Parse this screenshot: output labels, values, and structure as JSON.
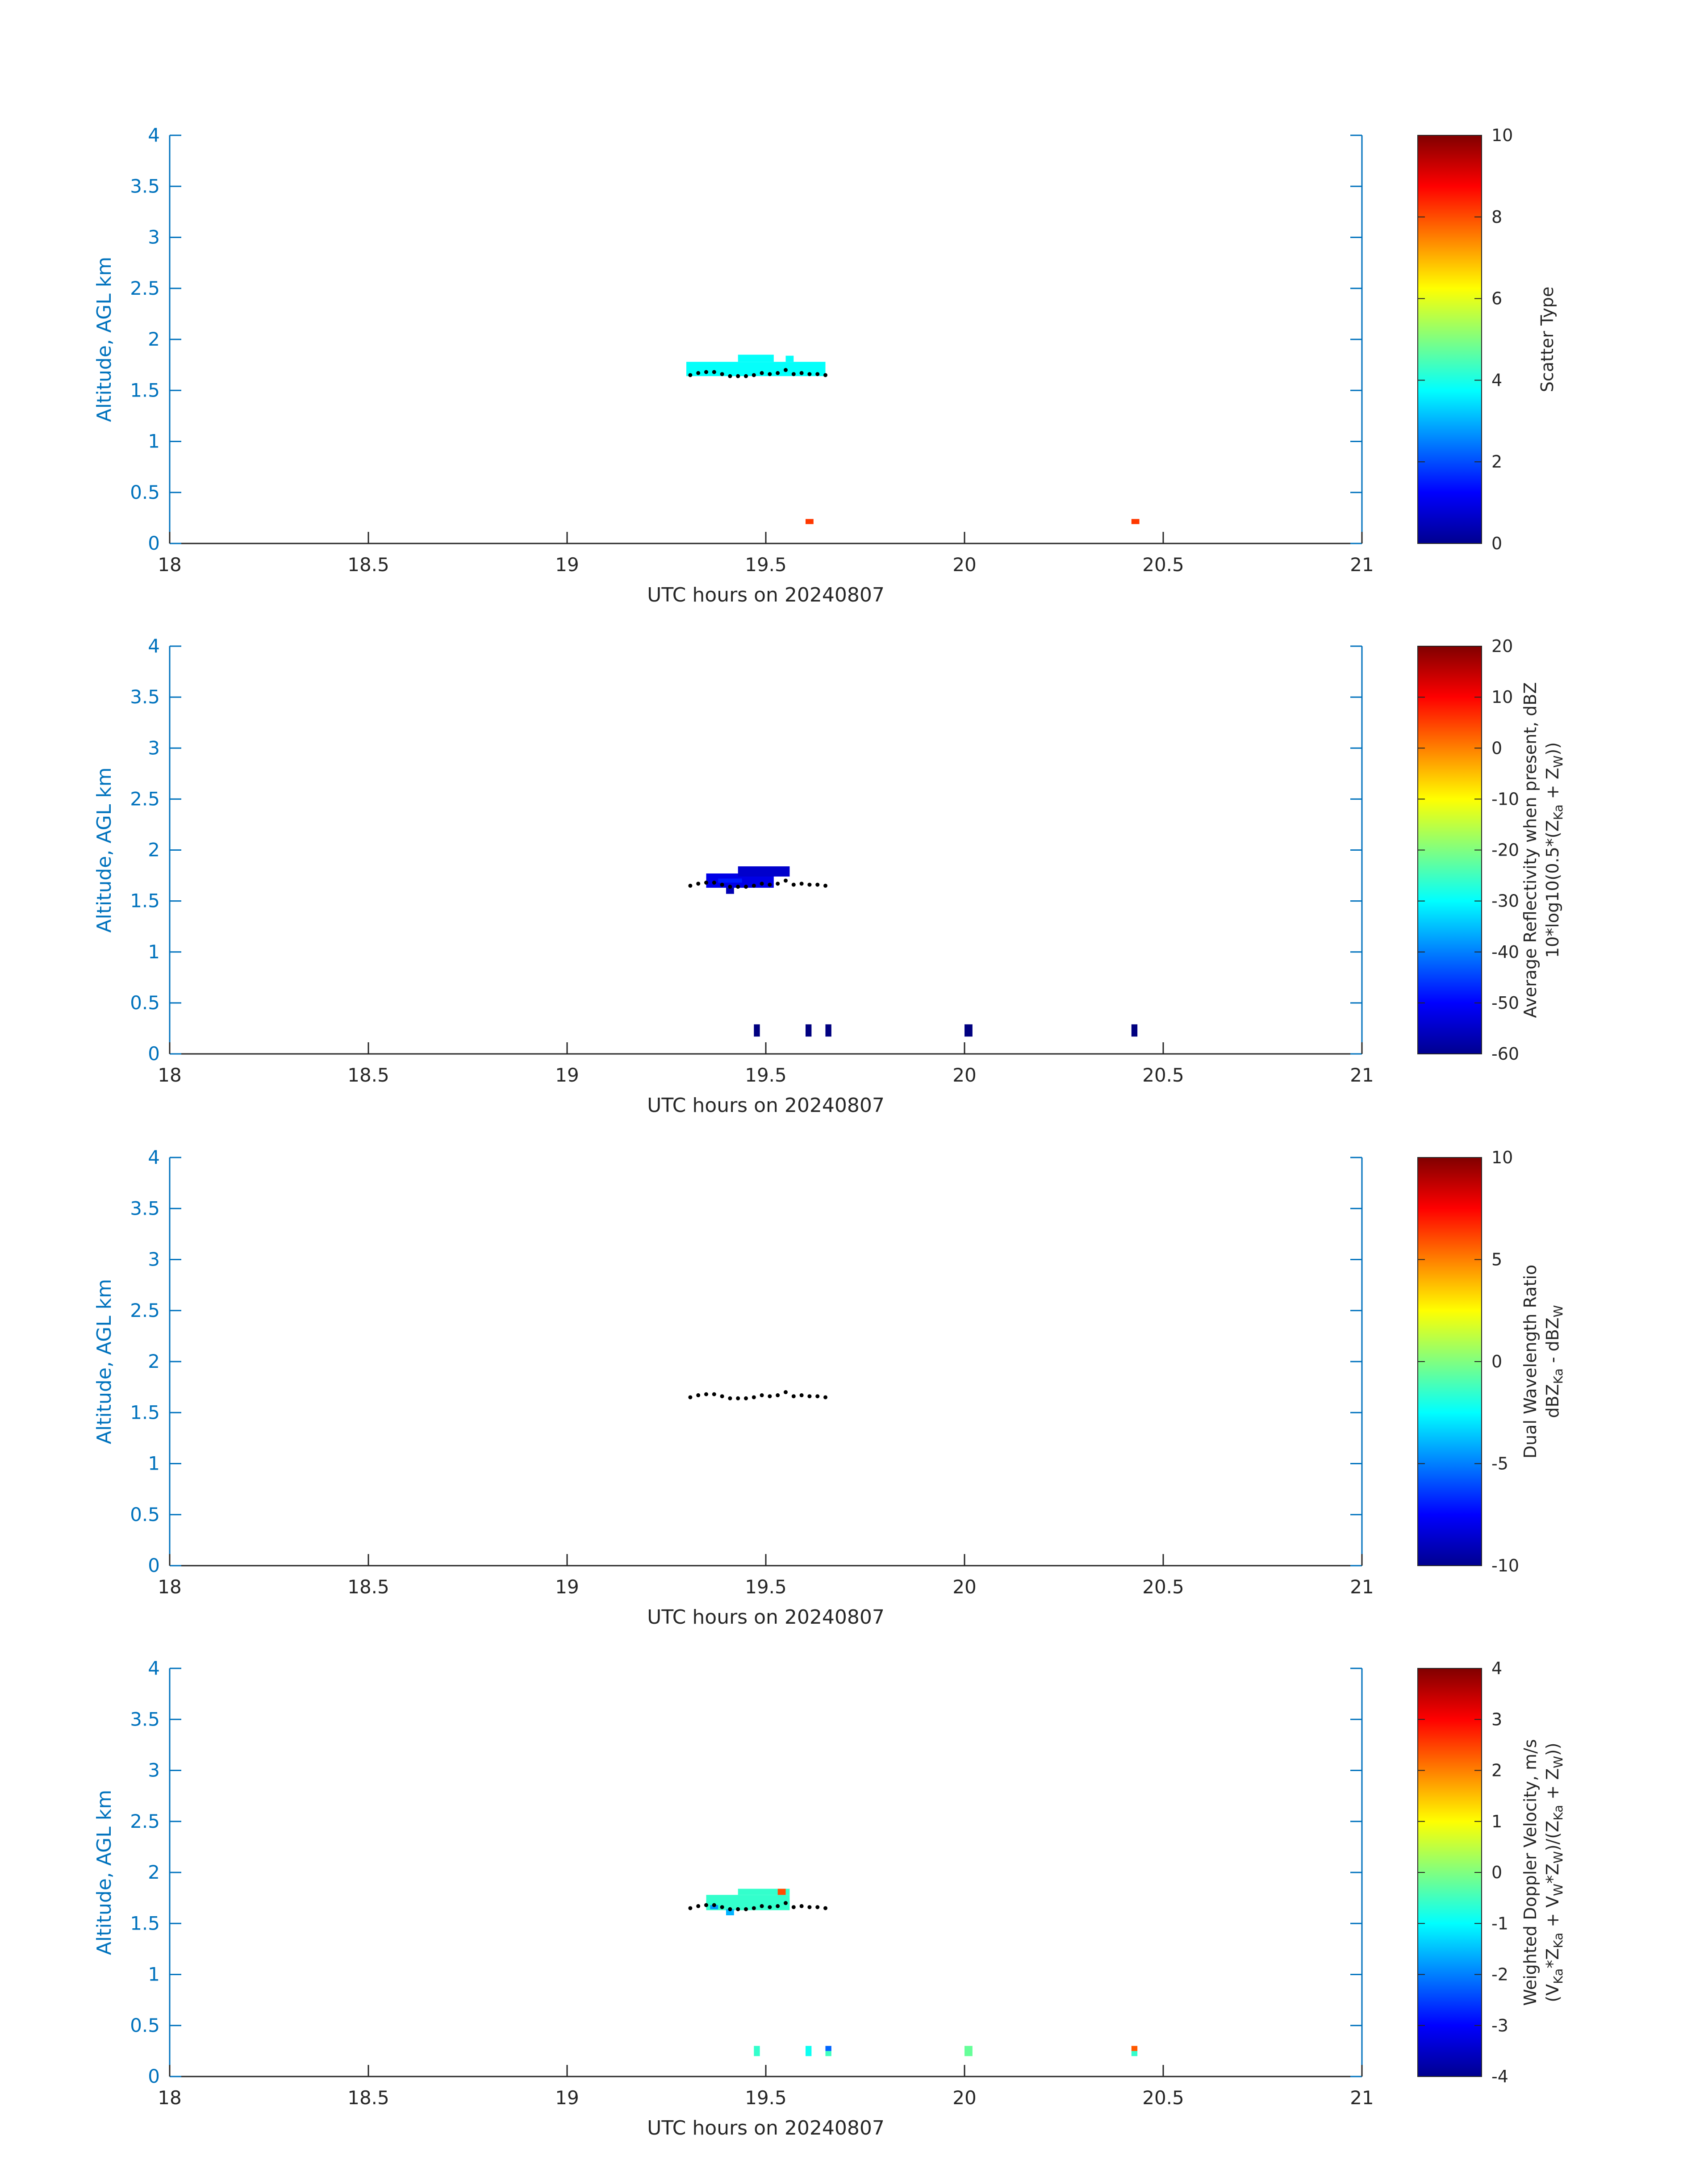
{
  "chart_data": [
    {
      "type": "heatmap",
      "xlabel": "UTC hours on 20240807",
      "ylabel": "Altitude, AGL km",
      "xlim": [
        18,
        21
      ],
      "ylim": [
        0,
        4
      ],
      "x_ticks": [
        "18",
        "18.5",
        "19",
        "19.5",
        "20",
        "20.5",
        "21"
      ],
      "y_ticks": [
        "0",
        "0.5",
        "1",
        "1.5",
        "2",
        "2.5",
        "3",
        "3.5",
        "4"
      ],
      "colorbar": {
        "colormap": "jet",
        "range": [
          0,
          10
        ],
        "ticks": [
          "0",
          "2",
          "4",
          "6",
          "8",
          "10"
        ],
        "label_lines": [
          {
            "runs": [
              {
                "t": "Scatter Type"
              }
            ]
          }
        ]
      },
      "cells": [
        {
          "x0": 19.3,
          "x1": 19.65,
          "y0": 1.64,
          "y1": 1.78,
          "v": 3.8
        },
        {
          "x0": 19.43,
          "x1": 19.52,
          "y0": 1.78,
          "y1": 1.85,
          "v": 3.8
        },
        {
          "x0": 19.55,
          "x1": 19.57,
          "y0": 1.78,
          "y1": 1.84,
          "v": 3.8
        },
        {
          "x0": 19.6,
          "x1": 19.62,
          "y0": 0.19,
          "y1": 0.24,
          "v": 8.2
        },
        {
          "x0": 20.42,
          "x1": 20.44,
          "y0": 0.19,
          "y1": 0.24,
          "v": 8.2
        }
      ],
      "cloud_base_dots": [
        [
          19.31,
          1.65
        ],
        [
          19.33,
          1.67
        ],
        [
          19.35,
          1.68
        ],
        [
          19.37,
          1.68
        ],
        [
          19.39,
          1.66
        ],
        [
          19.41,
          1.64
        ],
        [
          19.43,
          1.64
        ],
        [
          19.45,
          1.64
        ],
        [
          19.47,
          1.65
        ],
        [
          19.49,
          1.67
        ],
        [
          19.51,
          1.66
        ],
        [
          19.53,
          1.67
        ],
        [
          19.55,
          1.7
        ],
        [
          19.57,
          1.66
        ],
        [
          19.59,
          1.67
        ],
        [
          19.61,
          1.66
        ],
        [
          19.63,
          1.66
        ],
        [
          19.65,
          1.65
        ]
      ]
    },
    {
      "type": "heatmap",
      "xlabel": "UTC hours on 20240807",
      "ylabel": "Altitude, AGL km",
      "xlim": [
        18,
        21
      ],
      "ylim": [
        0,
        4
      ],
      "x_ticks": [
        "18",
        "18.5",
        "19",
        "19.5",
        "20",
        "20.5",
        "21"
      ],
      "y_ticks": [
        "0",
        "0.5",
        "1",
        "1.5",
        "2",
        "2.5",
        "3",
        "3.5",
        "4"
      ],
      "colorbar": {
        "colormap": "jet",
        "range": [
          -60,
          20
        ],
        "ticks": [
          "-60",
          "-50",
          "-40",
          "-30",
          "-20",
          "-10",
          "0",
          "10",
          "20"
        ],
        "label_lines": [
          {
            "runs": [
              {
                "t": "Average Reflectivity when present, dBZ"
              }
            ]
          },
          {
            "runs": [
              {
                "t": "10*log10(0.5*(Z"
              },
              {
                "t": "Ka",
                "sub": true
              },
              {
                "t": " + Z"
              },
              {
                "t": "W",
                "sub": true
              },
              {
                "t": "))"
              }
            ]
          }
        ]
      },
      "cells": [
        {
          "x0": 19.35,
          "x1": 19.52,
          "y0": 1.63,
          "y1": 1.77,
          "v": -52
        },
        {
          "x0": 19.43,
          "x1": 19.56,
          "y0": 1.74,
          "y1": 1.84,
          "v": -54
        },
        {
          "x0": 19.38,
          "x1": 19.44,
          "y0": 1.68,
          "y1": 1.72,
          "v": -48
        },
        {
          "x0": 19.4,
          "x1": 19.42,
          "y0": 1.57,
          "y1": 1.63,
          "v": -56
        },
        {
          "x0": 19.47,
          "x1": 19.485,
          "y0": 0.17,
          "y1": 0.29,
          "v": -60
        },
        {
          "x0": 19.6,
          "x1": 19.615,
          "y0": 0.17,
          "y1": 0.29,
          "v": -60
        },
        {
          "x0": 19.65,
          "x1": 19.665,
          "y0": 0.17,
          "y1": 0.29,
          "v": -60
        },
        {
          "x0": 20.0,
          "x1": 20.02,
          "y0": 0.17,
          "y1": 0.29,
          "v": -60
        },
        {
          "x0": 20.42,
          "x1": 20.435,
          "y0": 0.17,
          "y1": 0.29,
          "v": -60
        }
      ],
      "cloud_base_dots": [
        [
          19.31,
          1.65
        ],
        [
          19.33,
          1.67
        ],
        [
          19.35,
          1.68
        ],
        [
          19.37,
          1.68
        ],
        [
          19.39,
          1.66
        ],
        [
          19.41,
          1.64
        ],
        [
          19.43,
          1.64
        ],
        [
          19.45,
          1.64
        ],
        [
          19.47,
          1.65
        ],
        [
          19.49,
          1.67
        ],
        [
          19.51,
          1.66
        ],
        [
          19.53,
          1.67
        ],
        [
          19.55,
          1.7
        ],
        [
          19.57,
          1.66
        ],
        [
          19.59,
          1.67
        ],
        [
          19.61,
          1.66
        ],
        [
          19.63,
          1.66
        ],
        [
          19.65,
          1.65
        ]
      ]
    },
    {
      "type": "heatmap",
      "xlabel": "UTC hours on 20240807",
      "ylabel": "Altitude, AGL km",
      "xlim": [
        18,
        21
      ],
      "ylim": [
        0,
        4
      ],
      "x_ticks": [
        "18",
        "18.5",
        "19",
        "19.5",
        "20",
        "20.5",
        "21"
      ],
      "y_ticks": [
        "0",
        "0.5",
        "1",
        "1.5",
        "2",
        "2.5",
        "3",
        "3.5",
        "4"
      ],
      "colorbar": {
        "colormap": "jet",
        "range": [
          -10,
          10
        ],
        "ticks": [
          "-10",
          "-5",
          "0",
          "5",
          "10"
        ],
        "label_lines": [
          {
            "runs": [
              {
                "t": "Dual Wavelength Ratio"
              }
            ]
          },
          {
            "runs": [
              {
                "t": "dBZ"
              },
              {
                "t": "Ka",
                "sub": true
              },
              {
                "t": " - dBZ"
              },
              {
                "t": "W",
                "sub": true
              }
            ]
          }
        ]
      },
      "cells": [],
      "cloud_base_dots": [
        [
          19.31,
          1.65
        ],
        [
          19.33,
          1.67
        ],
        [
          19.35,
          1.68
        ],
        [
          19.37,
          1.68
        ],
        [
          19.39,
          1.66
        ],
        [
          19.41,
          1.64
        ],
        [
          19.43,
          1.64
        ],
        [
          19.45,
          1.64
        ],
        [
          19.47,
          1.65
        ],
        [
          19.49,
          1.67
        ],
        [
          19.51,
          1.66
        ],
        [
          19.53,
          1.67
        ],
        [
          19.55,
          1.7
        ],
        [
          19.57,
          1.66
        ],
        [
          19.59,
          1.67
        ],
        [
          19.61,
          1.66
        ],
        [
          19.63,
          1.66
        ],
        [
          19.65,
          1.65
        ]
      ]
    },
    {
      "type": "heatmap",
      "xlabel": "UTC hours on 20240807",
      "ylabel": "Altitude, AGL km",
      "xlim": [
        18,
        21
      ],
      "ylim": [
        0,
        4
      ],
      "x_ticks": [
        "18",
        "18.5",
        "19",
        "19.5",
        "20",
        "20.5",
        "21"
      ],
      "y_ticks": [
        "0",
        "0.5",
        "1",
        "1.5",
        "2",
        "2.5",
        "3",
        "3.5",
        "4"
      ],
      "colorbar": {
        "colormap": "jet",
        "range": [
          -4,
          4
        ],
        "ticks": [
          "-4",
          "-3",
          "-2",
          "-1",
          "0",
          "1",
          "2",
          "3",
          "4"
        ],
        "label_lines": [
          {
            "runs": [
              {
                "t": "Weighted Doppler Velocity, m/s"
              }
            ]
          },
          {
            "runs": [
              {
                "t": "(V"
              },
              {
                "t": "Ka",
                "sub": true
              },
              {
                "t": "*Z"
              },
              {
                "t": "Ka",
                "sub": true
              },
              {
                "t": " + V"
              },
              {
                "t": "W",
                "sub": true
              },
              {
                "t": "*Z"
              },
              {
                "t": "W",
                "sub": true
              },
              {
                "t": ")/(Z"
              },
              {
                "t": "Ka",
                "sub": true
              },
              {
                "t": " + Z"
              },
              {
                "t": "W",
                "sub": true
              },
              {
                "t": "))"
              }
            ]
          }
        ]
      },
      "cells": [
        {
          "x0": 19.35,
          "x1": 19.56,
          "y0": 1.63,
          "y1": 1.78,
          "v": -0.6
        },
        {
          "x0": 19.43,
          "x1": 19.56,
          "y0": 1.78,
          "y1": 1.84,
          "v": -0.6
        },
        {
          "x0": 19.53,
          "x1": 19.55,
          "y0": 1.78,
          "y1": 1.84,
          "v": 2.4
        },
        {
          "x0": 19.4,
          "x1": 19.42,
          "y0": 1.58,
          "y1": 1.64,
          "v": -1.6
        },
        {
          "x0": 19.36,
          "x1": 19.38,
          "y0": 1.64,
          "y1": 1.68,
          "v": -1.8
        },
        {
          "x0": 19.47,
          "x1": 19.485,
          "y0": 0.2,
          "y1": 0.3,
          "v": -0.6
        },
        {
          "x0": 19.6,
          "x1": 19.615,
          "y0": 0.2,
          "y1": 0.3,
          "v": -0.9
        },
        {
          "x0": 19.65,
          "x1": 19.665,
          "y0": 0.2,
          "y1": 0.25,
          "v": -0.5
        },
        {
          "x0": 19.65,
          "x1": 19.665,
          "y0": 0.25,
          "y1": 0.3,
          "v": -2.2
        },
        {
          "x0": 20.0,
          "x1": 20.02,
          "y0": 0.2,
          "y1": 0.3,
          "v": -0.2
        },
        {
          "x0": 20.42,
          "x1": 20.435,
          "y0": 0.2,
          "y1": 0.25,
          "v": -0.6
        },
        {
          "x0": 20.42,
          "x1": 20.435,
          "y0": 0.25,
          "y1": 0.3,
          "v": 2.3
        }
      ],
      "cloud_base_dots": [
        [
          19.31,
          1.65
        ],
        [
          19.33,
          1.67
        ],
        [
          19.35,
          1.68
        ],
        [
          19.37,
          1.68
        ],
        [
          19.39,
          1.66
        ],
        [
          19.41,
          1.64
        ],
        [
          19.43,
          1.64
        ],
        [
          19.45,
          1.64
        ],
        [
          19.47,
          1.65
        ],
        [
          19.49,
          1.67
        ],
        [
          19.51,
          1.66
        ],
        [
          19.53,
          1.67
        ],
        [
          19.55,
          1.7
        ],
        [
          19.57,
          1.66
        ],
        [
          19.59,
          1.67
        ],
        [
          19.61,
          1.66
        ],
        [
          19.63,
          1.66
        ],
        [
          19.65,
          1.65
        ]
      ]
    }
  ]
}
